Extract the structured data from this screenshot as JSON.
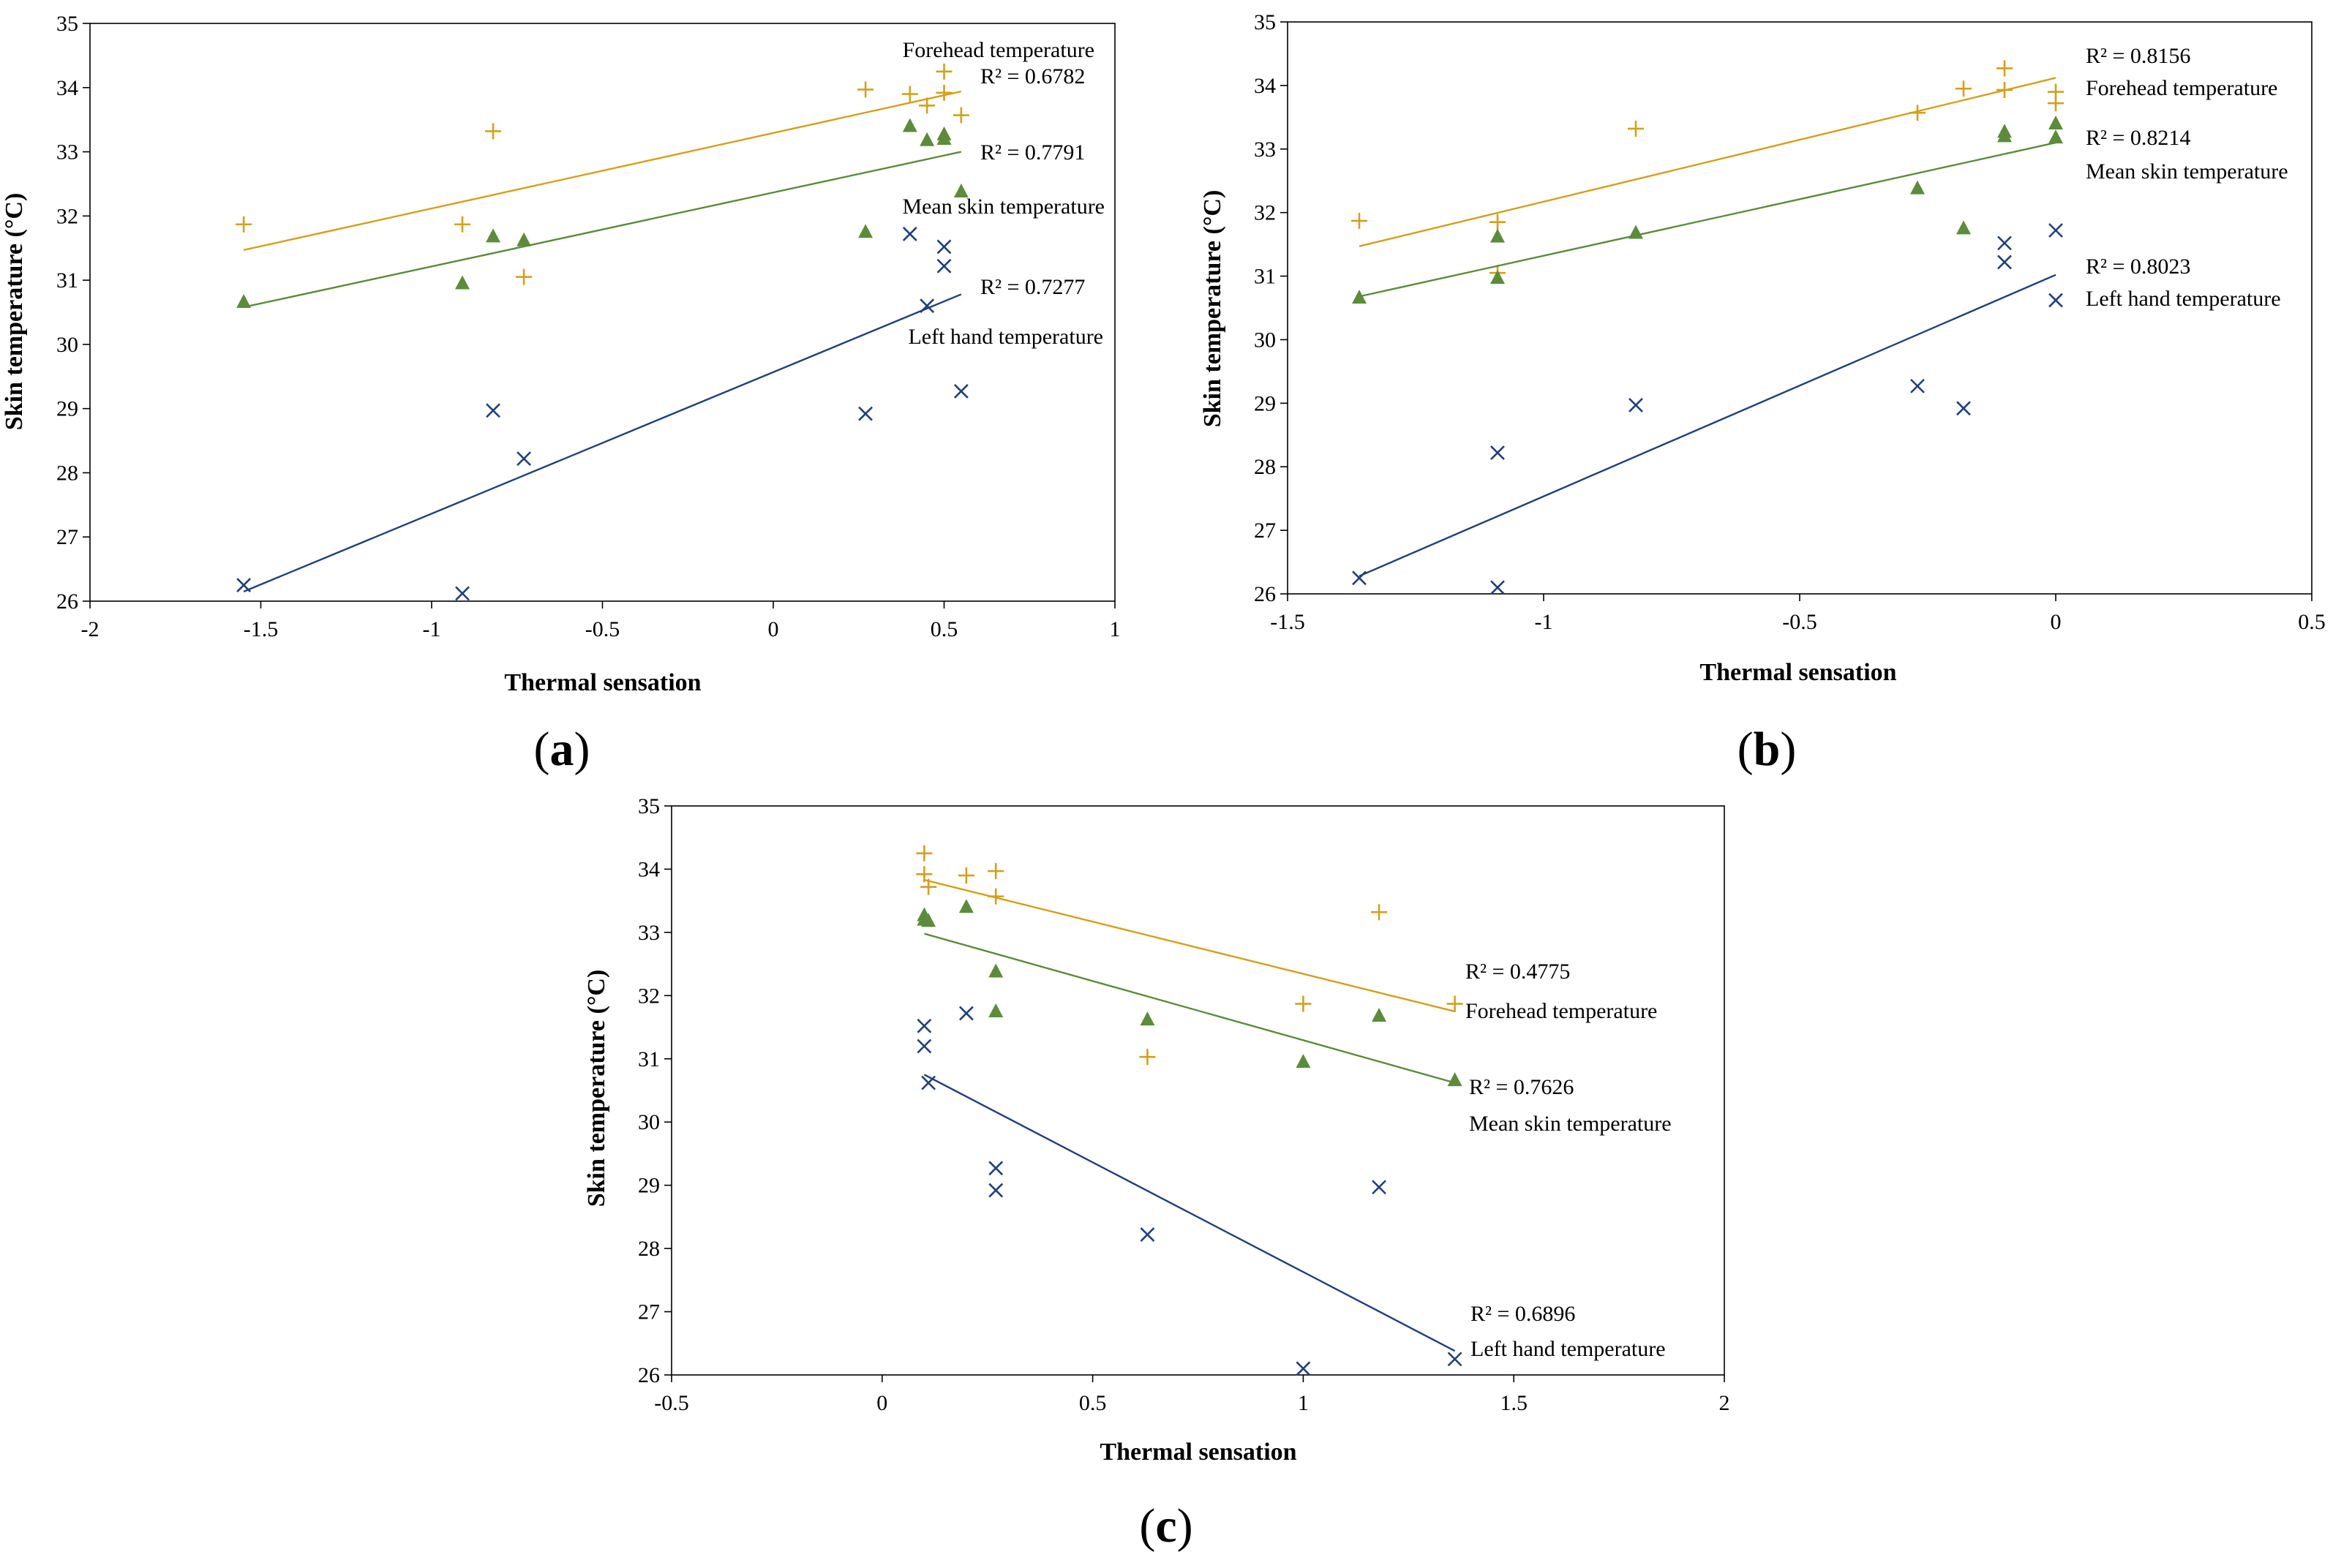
{
  "colors": {
    "forehead": "#D4A017",
    "mean_skin": "#5B8C3A",
    "left_hand": "#1F3F7F",
    "axis": "#000000"
  },
  "chart_data": [
    {
      "id": "a",
      "panel_label": "a",
      "type": "scatter",
      "xlabel": "Thermal sensation",
      "ylabel": "Skin temperature (°C)",
      "xlim": [
        -2,
        1
      ],
      "ylim": [
        26,
        35
      ],
      "xticks": [
        -2,
        -1.5,
        -1,
        -0.5,
        0,
        0.5,
        1
      ],
      "xtick_labels": [
        "-2",
        "-1.5",
        "-1",
        "-0.5",
        "0",
        "0.5",
        "1"
      ],
      "yticks": [
        26,
        27,
        28,
        29,
        30,
        31,
        32,
        33,
        34,
        35
      ],
      "ytick_labels": [
        "26",
        "27",
        "28",
        "29",
        "30",
        "31",
        "32",
        "33",
        "34",
        "35"
      ],
      "series": [
        {
          "key": "forehead",
          "marker": "plus",
          "points": [
            [
              -1.55,
              31.87
            ],
            [
              -0.91,
              31.87
            ],
            [
              -0.82,
              33.32
            ],
            [
              -0.73,
              31.05
            ],
            [
              0.27,
              33.97
            ],
            [
              0.4,
              33.9
            ],
            [
              0.45,
              33.72
            ],
            [
              0.5,
              34.25
            ],
            [
              0.5,
              33.92
            ],
            [
              0.55,
              33.57
            ]
          ],
          "trend": [
            [
              -1.55,
              31.47
            ],
            [
              0.55,
              33.94
            ]
          ],
          "r2_label": "R² = 0.6782",
          "name_label": "Forehead temperature"
        },
        {
          "key": "mean_skin",
          "marker": "triangle",
          "points": [
            [
              -1.55,
              30.66
            ],
            [
              -0.91,
              30.95
            ],
            [
              -0.82,
              31.68
            ],
            [
              -0.73,
              31.62
            ],
            [
              0.27,
              31.75
            ],
            [
              0.4,
              33.4
            ],
            [
              0.45,
              33.18
            ],
            [
              0.5,
              33.27
            ],
            [
              0.5,
              33.2
            ],
            [
              0.55,
              32.38
            ]
          ],
          "trend": [
            [
              -1.55,
              30.58
            ],
            [
              0.55,
              33.0
            ]
          ],
          "r2_label": "R² = 0.7791",
          "name_label": "Mean skin temperature"
        },
        {
          "key": "left_hand",
          "marker": "x",
          "points": [
            [
              -1.55,
              26.25
            ],
            [
              -0.91,
              26.12
            ],
            [
              -0.82,
              28.97
            ],
            [
              -0.73,
              28.22
            ],
            [
              0.27,
              28.92
            ],
            [
              0.4,
              31.72
            ],
            [
              0.45,
              30.6
            ],
            [
              0.5,
              31.52
            ],
            [
              0.5,
              31.22
            ],
            [
              0.55,
              29.27
            ]
          ],
          "trend": [
            [
              -1.55,
              26.15
            ],
            [
              0.55,
              30.78
            ]
          ],
          "r2_label": "R² = 0.7277",
          "name_label": "Left hand temperature"
        }
      ]
    },
    {
      "id": "b",
      "panel_label": "b",
      "type": "scatter",
      "xlabel": "Thermal sensation",
      "ylabel": "Skin temperature (°C)",
      "xlim": [
        -1.5,
        0.5
      ],
      "ylim": [
        26,
        35
      ],
      "xticks": [
        -1.5,
        -1,
        -0.5,
        0,
        0.5
      ],
      "xtick_labels": [
        "-1.5",
        "-1",
        "-0.5",
        "0",
        "0.5"
      ],
      "yticks": [
        26,
        27,
        28,
        29,
        30,
        31,
        32,
        33,
        34,
        35
      ],
      "ytick_labels": [
        "26",
        "27",
        "28",
        "29",
        "30",
        "31",
        "32",
        "33",
        "34",
        "35"
      ],
      "series": [
        {
          "key": "forehead",
          "marker": "plus",
          "points": [
            [
              -1.36,
              31.87
            ],
            [
              -1.09,
              31.85
            ],
            [
              -1.09,
              31.05
            ],
            [
              -0.82,
              33.32
            ],
            [
              -0.27,
              33.57
            ],
            [
              -0.18,
              33.95
            ],
            [
              -0.1,
              34.27
            ],
            [
              -0.1,
              33.93
            ],
            [
              0,
              33.9
            ],
            [
              0,
              33.72
            ]
          ],
          "trend": [
            [
              -1.36,
              31.47
            ],
            [
              0,
              34.12
            ]
          ],
          "r2_label": "R² = 0.8156",
          "name_label": "Forehead temperature"
        },
        {
          "key": "mean_skin",
          "marker": "triangle",
          "points": [
            [
              -1.36,
              30.66
            ],
            [
              -1.09,
              31.62
            ],
            [
              -1.09,
              30.97
            ],
            [
              -0.82,
              31.68
            ],
            [
              -0.27,
              32.38
            ],
            [
              -0.18,
              31.75
            ],
            [
              -0.1,
              33.27
            ],
            [
              -0.1,
              33.2
            ],
            [
              0,
              33.4
            ],
            [
              0,
              33.18
            ]
          ],
          "trend": [
            [
              -1.36,
              30.68
            ],
            [
              0,
              33.1
            ]
          ],
          "r2_label": "R² = 0.8214",
          "name_label": "Mean skin temperature"
        },
        {
          "key": "left_hand",
          "marker": "x",
          "points": [
            [
              -1.36,
              26.25
            ],
            [
              -1.09,
              28.22
            ],
            [
              -1.09,
              26.1
            ],
            [
              -0.82,
              28.97
            ],
            [
              -0.27,
              29.27
            ],
            [
              -0.18,
              28.92
            ],
            [
              -0.1,
              31.52
            ],
            [
              -0.1,
              31.22
            ],
            [
              0,
              31.72
            ],
            [
              0,
              30.62
            ]
          ],
          "trend": [
            [
              -1.36,
              26.28
            ],
            [
              0,
              31.02
            ]
          ],
          "r2_label": "R² = 0.8023",
          "name_label": "Left hand temperature"
        }
      ]
    },
    {
      "id": "c",
      "panel_label": "c",
      "type": "scatter",
      "xlabel": "Thermal sensation",
      "ylabel": "Skin temperature (°C)",
      "xlim": [
        -0.5,
        2
      ],
      "ylim": [
        26,
        35
      ],
      "xticks": [
        -0.5,
        0,
        0.5,
        1,
        1.5,
        2
      ],
      "xtick_labels": [
        "-0.5",
        "0",
        "0.5",
        "1",
        "1.5",
        "2"
      ],
      "yticks": [
        26,
        27,
        28,
        29,
        30,
        31,
        32,
        33,
        34,
        35
      ],
      "ytick_labels": [
        "26",
        "27",
        "28",
        "29",
        "30",
        "31",
        "32",
        "33",
        "34",
        "35"
      ],
      "series": [
        {
          "key": "forehead",
          "marker": "plus",
          "points": [
            [
              0.1,
              34.25
            ],
            [
              0.1,
              33.92
            ],
            [
              0.11,
              33.72
            ],
            [
              0.2,
              33.9
            ],
            [
              0.27,
              33.97
            ],
            [
              0.27,
              33.57
            ],
            [
              0.63,
              31.03
            ],
            [
              1.0,
              31.87
            ],
            [
              1.18,
              33.32
            ],
            [
              1.36,
              31.87
            ]
          ],
          "trend": [
            [
              0.1,
              33.83
            ],
            [
              1.36,
              31.75
            ]
          ],
          "r2_label": "R² = 0.4775",
          "name_label": "Forehead temperature"
        },
        {
          "key": "mean_skin",
          "marker": "triangle",
          "points": [
            [
              0.1,
              33.27
            ],
            [
              0.1,
              33.2
            ],
            [
              0.11,
              33.18
            ],
            [
              0.2,
              33.4
            ],
            [
              0.27,
              32.38
            ],
            [
              0.27,
              31.75
            ],
            [
              0.63,
              31.62
            ],
            [
              1.0,
              30.95
            ],
            [
              1.18,
              31.68
            ],
            [
              1.36,
              30.66
            ]
          ],
          "trend": [
            [
              0.1,
              32.98
            ],
            [
              1.36,
              30.62
            ]
          ],
          "r2_label": "R² = 0.7626",
          "name_label": "Mean skin temperature"
        },
        {
          "key": "left_hand",
          "marker": "x",
          "points": [
            [
              0.1,
              31.52
            ],
            [
              0.1,
              31.2
            ],
            [
              0.11,
              30.62
            ],
            [
              0.2,
              31.72
            ],
            [
              0.27,
              29.27
            ],
            [
              0.27,
              28.92
            ],
            [
              0.63,
              28.22
            ],
            [
              1.0,
              26.1
            ],
            [
              1.18,
              28.97
            ],
            [
              1.36,
              26.25
            ]
          ],
          "trend": [
            [
              0.1,
              30.75
            ],
            [
              1.36,
              26.38
            ]
          ],
          "r2_label": "R² = 0.6896",
          "name_label": "Left hand temperature"
        }
      ]
    }
  ]
}
